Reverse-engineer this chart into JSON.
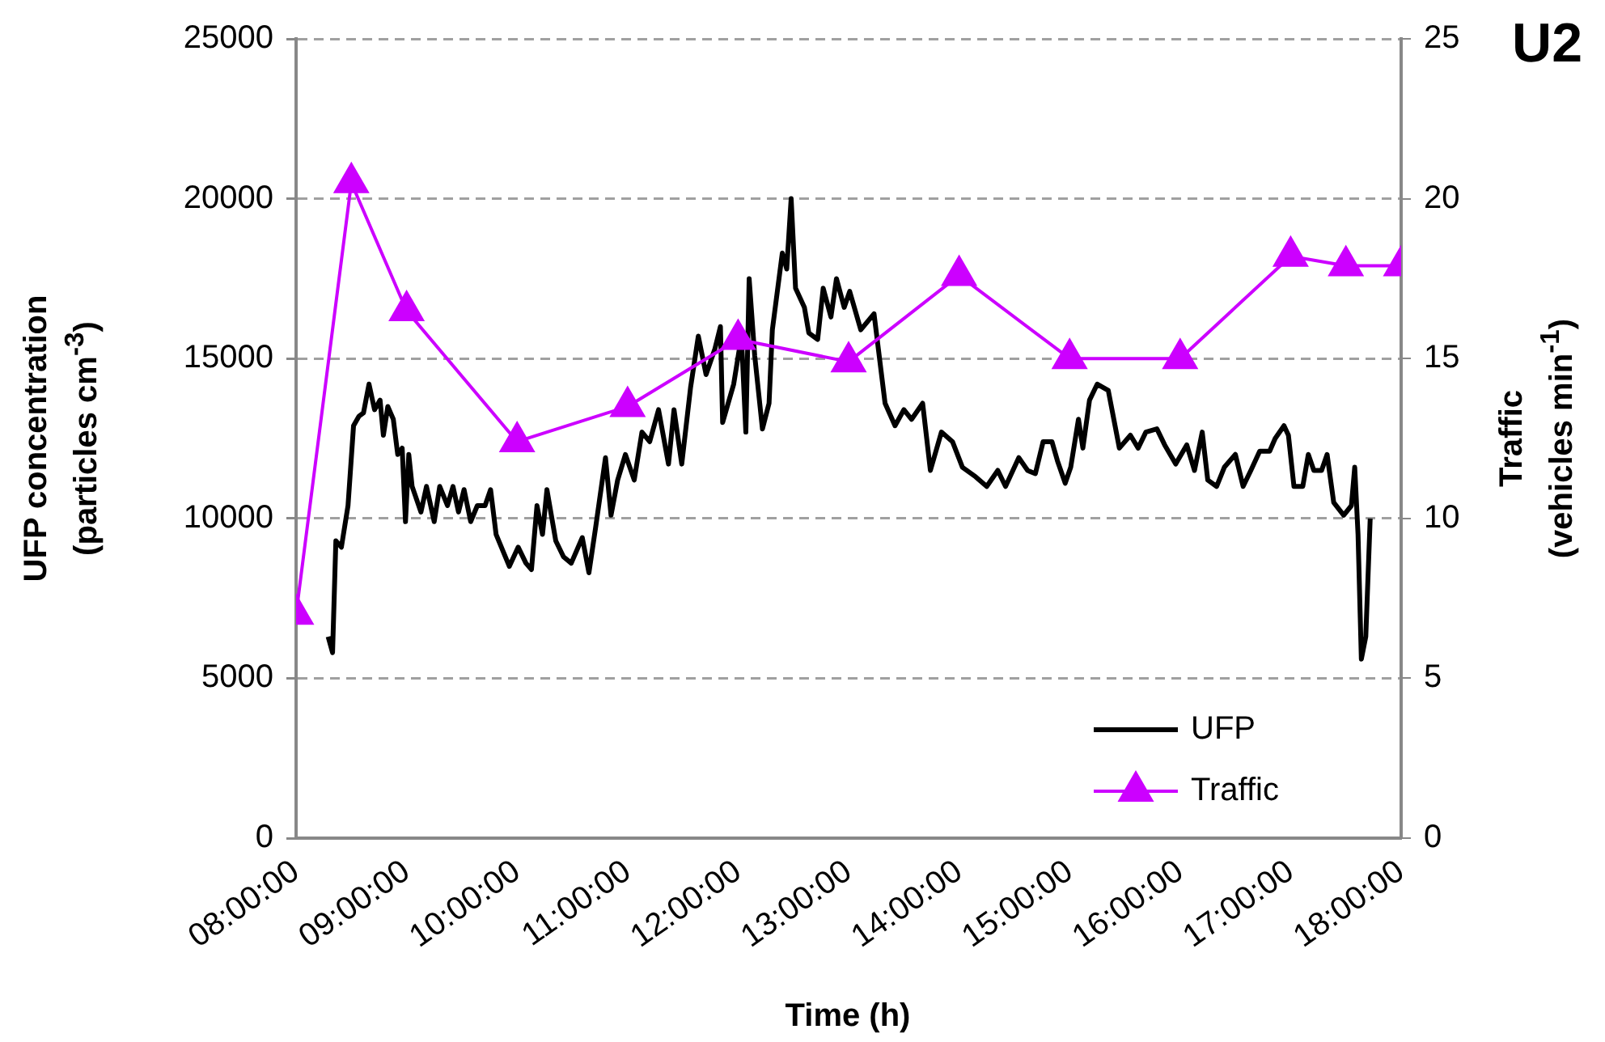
{
  "chart_data": {
    "type": "line",
    "title": "U2",
    "xlabel": "Time (h)",
    "ylabel": "UFP concentration\n(particles cm$^{-3}$)",
    "y2label": "Traffic\n(vehicles min$^{-1}$)",
    "xlim": [
      8,
      18
    ],
    "xticks": [
      {
        "value": 8,
        "label": "08:00:00"
      },
      {
        "value": 9,
        "label": "09:00:00"
      },
      {
        "value": 10,
        "label": "10:00:00"
      },
      {
        "value": 11,
        "label": "11:00:00"
      },
      {
        "value": 12,
        "label": "12:00:00"
      },
      {
        "value": 13,
        "label": "13:00:00"
      },
      {
        "value": 14,
        "label": "14:00:00"
      },
      {
        "value": 15,
        "label": "15:00:00"
      },
      {
        "value": 16,
        "label": "16:00:00"
      },
      {
        "value": 17,
        "label": "17:00:00"
      },
      {
        "value": 18,
        "label": "18:00:00"
      }
    ],
    "ylim": [
      0,
      25000
    ],
    "yticks": [
      0,
      5000,
      10000,
      15000,
      20000,
      25000
    ],
    "y2lim": [
      0,
      25
    ],
    "y2ticks": [
      0,
      5,
      10,
      15,
      20,
      25
    ],
    "grid": "y",
    "legend": "bottom right",
    "series": [
      {
        "name": "UFP",
        "color": "#000000",
        "marker": "none",
        "x": [
          8.29,
          8.33,
          8.36,
          8.41,
          8.47,
          8.52,
          8.57,
          8.61,
          8.66,
          8.71,
          8.76,
          8.79,
          8.83,
          8.88,
          8.92,
          8.96,
          8.99,
          9.02,
          9.05,
          9.13,
          9.18,
          9.25,
          9.3,
          9.37,
          9.42,
          9.47,
          9.52,
          9.58,
          9.64,
          9.71,
          9.76,
          9.81,
          9.87,
          9.93,
          10.01,
          10.08,
          10.13,
          10.18,
          10.23,
          10.27,
          10.35,
          10.42,
          10.49,
          10.59,
          10.65,
          10.71,
          10.8,
          10.85,
          10.91,
          10.98,
          11.06,
          11.13,
          11.2,
          11.28,
          11.37,
          11.42,
          11.49,
          11.57,
          11.64,
          11.71,
          11.79,
          11.84,
          11.86,
          11.96,
          12.03,
          12.07,
          12.1,
          12.15,
          12.22,
          12.28,
          12.31,
          12.4,
          12.44,
          12.48,
          12.52,
          12.6,
          12.64,
          12.72,
          12.77,
          12.84,
          12.89,
          12.96,
          13.01,
          13.11,
          13.23,
          13.33,
          13.42,
          13.5,
          13.57,
          13.67,
          13.74,
          13.84,
          13.94,
          14.03,
          14.15,
          14.25,
          14.35,
          14.42,
          14.54,
          14.62,
          14.69,
          14.76,
          14.84,
          14.89,
          14.96,
          15.01,
          15.08,
          15.12,
          15.18,
          15.25,
          15.35,
          15.45,
          15.55,
          15.62,
          15.69,
          15.79,
          15.86,
          15.96,
          16.06,
          16.13,
          16.2,
          16.25,
          16.33,
          16.4,
          16.5,
          16.57,
          16.64,
          16.72,
          16.81,
          16.86,
          16.94,
          16.98,
          17.03,
          17.11,
          17.16,
          17.21,
          17.28,
          17.33,
          17.39,
          17.48,
          17.55,
          17.58,
          17.61,
          17.64,
          17.68,
          17.72
        ],
        "values": [
          6300,
          5800,
          9300,
          9100,
          10400,
          12900,
          13200,
          13300,
          14200,
          13400,
          13700,
          12600,
          13500,
          13100,
          12000,
          12200,
          9900,
          12000,
          11000,
          10200,
          11000,
          9900,
          11000,
          10400,
          11000,
          10200,
          10900,
          9900,
          10400,
          10400,
          10900,
          9500,
          9000,
          8500,
          9100,
          8600,
          8400,
          10400,
          9500,
          10900,
          9300,
          8800,
          8600,
          9400,
          8300,
          9700,
          11900,
          10100,
          11200,
          12000,
          11200,
          12700,
          12400,
          13400,
          11700,
          13400,
          11700,
          14100,
          15700,
          14500,
          15300,
          16000,
          13000,
          14200,
          15700,
          12700,
          17500,
          15100,
          12800,
          13600,
          15900,
          18300,
          17800,
          20000,
          17200,
          16600,
          15800,
          15600,
          17200,
          16300,
          17500,
          16600,
          17100,
          15900,
          16400,
          13600,
          12900,
          13400,
          13100,
          13600,
          11500,
          12700,
          12400,
          11600,
          11300,
          11000,
          11500,
          11000,
          11900,
          11500,
          11400,
          12400,
          12400,
          11800,
          11100,
          11600,
          13100,
          12200,
          13700,
          14200,
          14000,
          12200,
          12600,
          12200,
          12700,
          12800,
          12300,
          11700,
          12300,
          11500,
          12700,
          11200,
          11000,
          11600,
          12000,
          11000,
          11500,
          12100,
          12100,
          12500,
          12900,
          12600,
          11000,
          11000,
          12000,
          11500,
          11500,
          12000,
          10500,
          10100,
          10400,
          11600,
          9500,
          5600,
          6300,
          10000
        ]
      },
      {
        "name": "Traffic",
        "color": "#cc00ff",
        "axis": "y2",
        "marker": "triangle",
        "x": [
          8,
          8.5,
          9,
          10,
          11,
          12,
          13,
          14,
          15,
          16,
          17,
          17.5,
          18
        ],
        "values": [
          7,
          20.5,
          16.5,
          12.4,
          13.5,
          15.6,
          14.9,
          17.6,
          15,
          15,
          18.2,
          17.9,
          17.9
        ]
      }
    ]
  }
}
